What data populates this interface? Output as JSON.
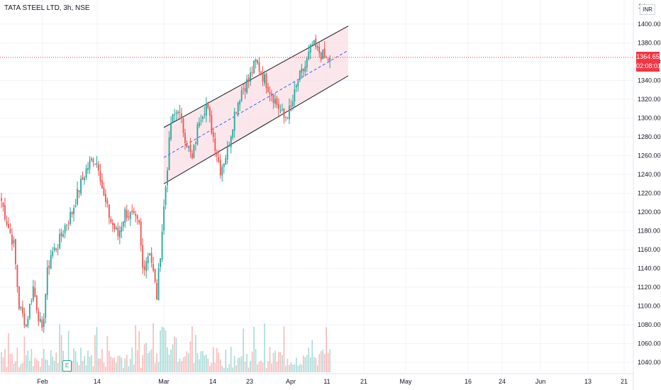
{
  "header": {
    "title": "TATA STEEL LTD, 3h, NSE"
  },
  "top_label": "14",
  "currency_badge": "INR",
  "price_tag": {
    "price": "1364.65",
    "countdown": "02:08:01"
  },
  "earnings_marker": "E",
  "colors": {
    "up": "#26a69a",
    "down": "#ef5350",
    "channel_fill": "#f9d7dd",
    "channel_line": "#131722",
    "midline": "#3d5afe",
    "price_line": "#f23645"
  },
  "chart_data": {
    "type": "candlestick",
    "title": "TATA STEEL LTD, 3h, NSE",
    "ylim": [
      1030,
      1420
    ],
    "y_ticks": [
      1040,
      1060,
      1080,
      1100,
      1120,
      1140,
      1160,
      1180,
      1200,
      1220,
      1240,
      1260,
      1280,
      1300,
      1320,
      1340,
      1360,
      1380,
      1400
    ],
    "x_ticks": [
      "Feb",
      "14",
      "Mar",
      "14",
      "23",
      "Apr",
      "11",
      "21",
      "May",
      "16",
      "24",
      "Jun",
      "13",
      "21"
    ],
    "last_price": 1364.65,
    "channel": {
      "upper_start": 1290,
      "upper_end": 1398,
      "lower_start": 1230,
      "lower_end": 1345,
      "mid_start": 1258,
      "mid_end": 1372
    },
    "anchors": [
      [
        0,
        1212
      ],
      [
        3,
        1190
      ],
      [
        7,
        1165
      ],
      [
        10,
        1100
      ],
      [
        14,
        1080
      ],
      [
        18,
        1120
      ],
      [
        20,
        1100
      ],
      [
        23,
        1070
      ],
      [
        26,
        1135
      ],
      [
        28,
        1155
      ],
      [
        32,
        1165
      ],
      [
        36,
        1185
      ],
      [
        40,
        1200
      ],
      [
        44,
        1225
      ],
      [
        48,
        1245
      ],
      [
        52,
        1258
      ],
      [
        55,
        1250
      ],
      [
        58,
        1215
      ],
      [
        62,
        1190
      ],
      [
        66,
        1175
      ],
      [
        70,
        1200
      ],
      [
        74,
        1195
      ],
      [
        78,
        1185
      ],
      [
        80,
        1140
      ],
      [
        84,
        1160
      ],
      [
        88,
        1110
      ],
      [
        92,
        1205
      ],
      [
        96,
        1295
      ],
      [
        100,
        1310
      ],
      [
        104,
        1280
      ],
      [
        108,
        1255
      ],
      [
        112,
        1300
      ],
      [
        116,
        1315
      ],
      [
        120,
        1280
      ],
      [
        124,
        1245
      ],
      [
        128,
        1265
      ],
      [
        132,
        1305
      ],
      [
        136,
        1330
      ],
      [
        140,
        1340
      ],
      [
        144,
        1360
      ],
      [
        148,
        1345
      ],
      [
        152,
        1330
      ],
      [
        156,
        1315
      ],
      [
        160,
        1300
      ],
      [
        164,
        1310
      ],
      [
        168,
        1340
      ],
      [
        172,
        1355
      ],
      [
        176,
        1378
      ],
      [
        180,
        1370
      ],
      [
        184,
        1362
      ],
      [
        186,
        1364.65
      ]
    ]
  }
}
